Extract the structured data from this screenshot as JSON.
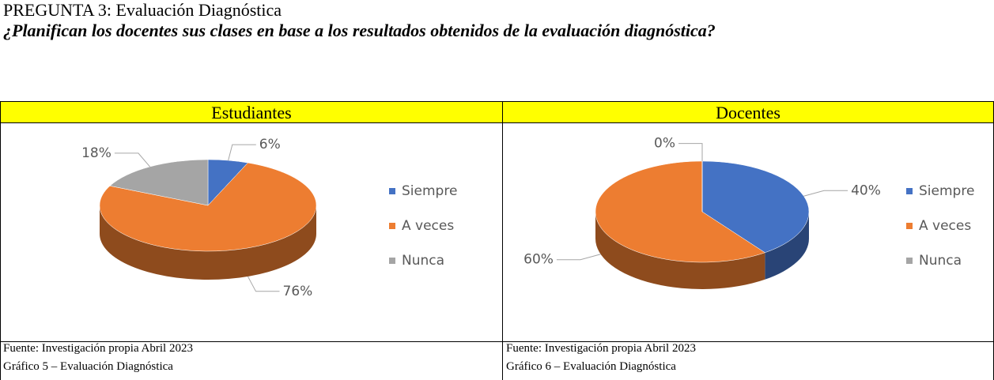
{
  "header": {
    "title": "PREGUNTA 3: Evaluación Diagnóstica",
    "question": "¿Planifican los docentes sus clases en base a los resultados obtenidos de la evaluación diagnóstica?"
  },
  "chart_data": [
    {
      "type": "pie",
      "title": "Estudiantes",
      "categories": [
        "Siempre",
        "A veces",
        "Nunca"
      ],
      "values": [
        6,
        76,
        18
      ],
      "value_labels": [
        "6%",
        "76%",
        "18%"
      ],
      "colors": [
        "#4472c4",
        "#ed7d31",
        "#a5a5a5"
      ],
      "legend": "right",
      "source": "Fuente: Investigación propia Abril 2023",
      "caption": "Gráfico 5 – Evaluación Diagnóstica"
    },
    {
      "type": "pie",
      "title": "Docentes",
      "categories": [
        "Siempre",
        "A veces",
        "Nunca"
      ],
      "values": [
        40,
        60,
        0
      ],
      "value_labels": [
        "40%",
        "60%",
        "0%"
      ],
      "colors": [
        "#4472c4",
        "#ed7d31",
        "#a5a5a5"
      ],
      "legend": "right",
      "source": "Fuente: Investigación propia Abril 2023",
      "caption": "Gráfico 6 – Evaluación Diagnóstica"
    }
  ]
}
